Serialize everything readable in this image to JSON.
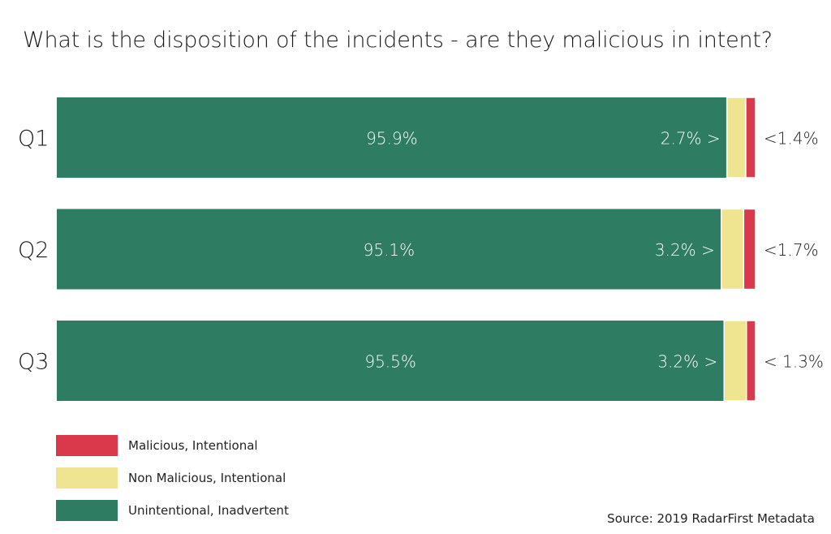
{
  "title": "What is the disposition of the incidents - are they malicious in intent?",
  "source": "Source: 2019 RadarFirst Metadata",
  "colors": {
    "unintentional": "#2e7d63",
    "non_malicious": "#efe48f",
    "malicious": "#d9394a"
  },
  "legend": [
    {
      "label": "Malicious, Intentional",
      "color": "#d9394a"
    },
    {
      "label": "Non Malicious, Intentional",
      "color": "#efe48f"
    },
    {
      "label": "Unintentional, Inadvertent",
      "color": "#2e7d63"
    }
  ],
  "chart_data": {
    "type": "bar",
    "orientation": "horizontal",
    "stacked": true,
    "title": "What is the disposition of the incidents - are they malicious in intent?",
    "xlabel": "",
    "ylabel": "",
    "categories": [
      "Q1",
      "Q2",
      "Q3"
    ],
    "series": [
      {
        "name": "Unintentional, Inadvertent",
        "values": [
          95.9,
          95.1,
          95.5
        ],
        "labels": [
          "95.9%",
          "95.1%",
          "95.5%"
        ]
      },
      {
        "name": "Non Malicious, Intentional",
        "values": [
          2.7,
          3.2,
          3.2
        ],
        "labels": [
          "2.7% >",
          "3.2% >",
          "3.2% >"
        ]
      },
      {
        "name": "Malicious, Intentional",
        "values": [
          1.4,
          1.7,
          1.3
        ],
        "labels": [
          "<1.4%",
          "<1.7%",
          "< 1.3%"
        ]
      }
    ],
    "xlim": [
      0,
      100
    ],
    "grid": false,
    "legend_position": "bottom-left"
  }
}
